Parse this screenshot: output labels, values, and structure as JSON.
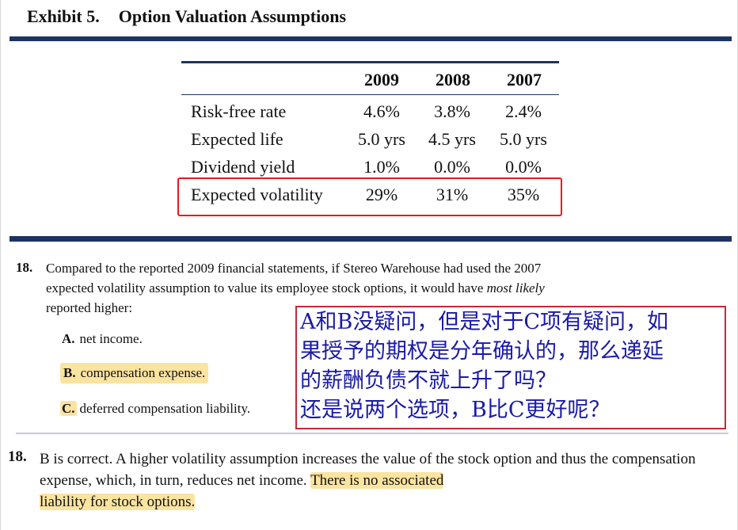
{
  "exhibit": {
    "number": "Exhibit 5.",
    "title": "Option Valuation Assumptions"
  },
  "table": {
    "columns": [
      "2009",
      "2008",
      "2007"
    ],
    "rows": [
      {
        "label": "Risk-free rate",
        "values": [
          "4.6%",
          "3.8%",
          "2.4%"
        ]
      },
      {
        "label": "Expected life",
        "values": [
          "5.0 yrs",
          "4.5 yrs",
          "5.0 yrs"
        ]
      },
      {
        "label": "Dividend yield",
        "values": [
          "1.0%",
          "0.0%",
          "0.0%"
        ]
      },
      {
        "label": "Expected volatility",
        "values": [
          "29%",
          "31%",
          "35%"
        ]
      }
    ]
  },
  "question": {
    "number": "18.",
    "text_line1": "Compared to the reported 2009 financial statements, if Stereo Warehouse had used the 2007",
    "text_line2_a": "expected volatility assumption to value its employee stock options, it would have ",
    "text_line2_em": "most likely",
    "text_line3": "reported higher:",
    "options": [
      {
        "letter": "A.",
        "text": "net income."
      },
      {
        "letter": "B.",
        "text": "compensation expense."
      },
      {
        "letter": "C.",
        "text": "deferred compensation liability."
      }
    ]
  },
  "note": {
    "lines": [
      "A和B没疑问，但是对于C项有疑问，如",
      "果授予的期权是分年确认的，那么递延",
      "的薪酬负债不就上升了吗？",
      "还是说两个选项，B比C更好呢？"
    ],
    "color": "#1a1aa8",
    "border_color": "#c1293b"
  },
  "answer": {
    "number": "18.",
    "text_plain": "B is correct. A higher volatility assumption increases the value of the stock option and thus the compensation expense, which, in turn, reduces net income. ",
    "text_highlight_1": "There is no associated",
    "text_highlight_2": "liability for stock options."
  },
  "colors": {
    "navy_rule": "#1d3461",
    "highlight": "#fbe4a0",
    "red_box": "#e21d1d"
  }
}
